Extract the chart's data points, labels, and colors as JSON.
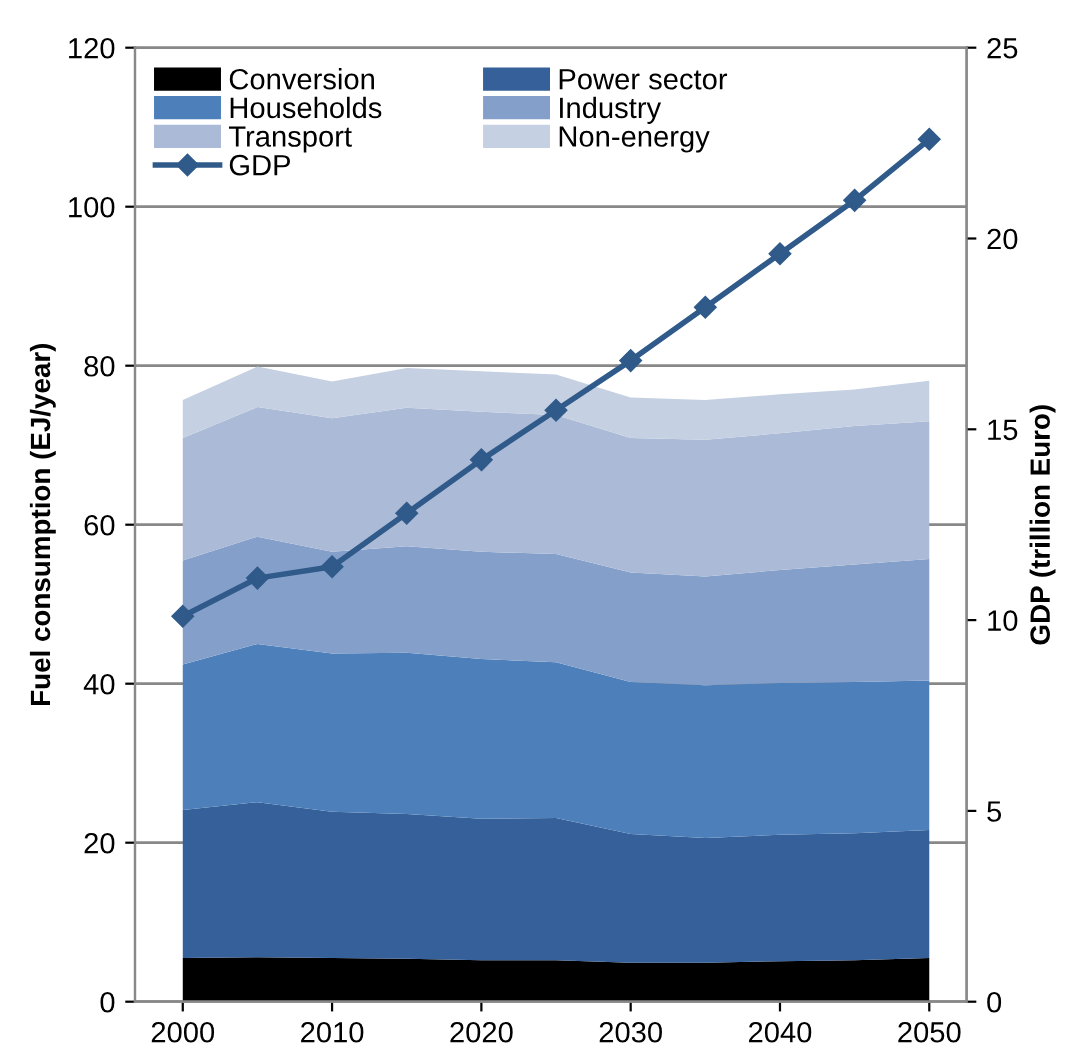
{
  "chart_data": {
    "type": "area",
    "stacked": true,
    "ylabel": "Fuel consumption (EJ/year)",
    "y2label": "GDP (trillion Euro)",
    "x": [
      2000,
      2005,
      2010,
      2015,
      2020,
      2025,
      2030,
      2035,
      2040,
      2045,
      2050
    ],
    "xlim": [
      1996.8,
      2052.5
    ],
    "xticks": [
      2000,
      2010,
      2020,
      2030,
      2040,
      2050
    ],
    "ylim": [
      0,
      120
    ],
    "yticks": [
      0,
      20,
      40,
      60,
      80,
      100,
      120
    ],
    "y2lim": [
      0,
      25
    ],
    "y2ticks": [
      0,
      5,
      10,
      15,
      20,
      25
    ],
    "grid": "y",
    "legend": "top left",
    "series": [
      {
        "name": "Conversion",
        "color": "#000000",
        "values": [
          5.5,
          5.6,
          5.5,
          5.4,
          5.2,
          5.2,
          4.9,
          4.9,
          5.1,
          5.2,
          5.5
        ]
      },
      {
        "name": "Power sector",
        "color": "#36609a",
        "values": [
          18.6,
          19.5,
          18.4,
          18.2,
          17.8,
          17.9,
          16.2,
          15.7,
          15.9,
          16.0,
          16.1
        ]
      },
      {
        "name": "Households",
        "color": "#4d80bb",
        "values": [
          18.3,
          19.9,
          19.9,
          20.3,
          20.1,
          19.6,
          19.1,
          19.2,
          19.1,
          19.0,
          18.8
        ]
      },
      {
        "name": "Industry",
        "color": "#849fc9",
        "values": [
          13.1,
          13.5,
          12.8,
          13.4,
          13.5,
          13.6,
          13.8,
          13.7,
          14.2,
          14.8,
          15.3
        ]
      },
      {
        "name": "Transport",
        "color": "#abbad6",
        "values": [
          15.4,
          16.3,
          16.8,
          17.4,
          17.6,
          17.5,
          16.9,
          17.2,
          17.2,
          17.4,
          17.3
        ]
      },
      {
        "name": "Non-energy",
        "color": "#c5d0e2",
        "values": [
          4.8,
          5.1,
          4.6,
          5.0,
          5.1,
          5.1,
          5.1,
          5.0,
          4.9,
          4.6,
          5.1
        ]
      },
      {
        "name": "GDP",
        "type": "line",
        "axis": "y2",
        "marker": "diamond",
        "line_style": "solid",
        "color": "#2f5a8a",
        "values": [
          10.1,
          11.1,
          11.4,
          12.8,
          14.2,
          15.5,
          16.8,
          18.2,
          19.6,
          21.0,
          22.6
        ]
      }
    ]
  }
}
